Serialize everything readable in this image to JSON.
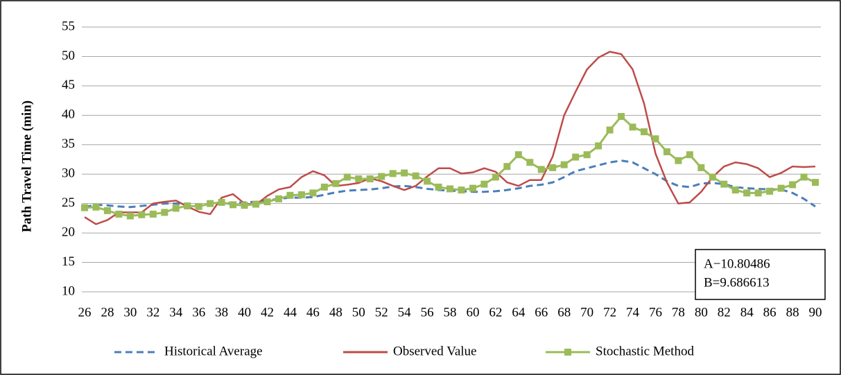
{
  "chart_data": {
    "type": "line",
    "y_label": "Path Travel  Time (min)",
    "x": [
      26,
      27,
      28,
      29,
      30,
      31,
      32,
      33,
      34,
      35,
      36,
      37,
      38,
      39,
      40,
      41,
      42,
      43,
      44,
      45,
      46,
      47,
      48,
      49,
      50,
      51,
      52,
      53,
      54,
      55,
      56,
      57,
      58,
      59,
      60,
      61,
      62,
      63,
      64,
      65,
      66,
      67,
      68,
      69,
      70,
      71,
      72,
      73,
      74,
      75,
      76,
      77,
      78,
      79,
      80,
      81,
      82,
      83,
      84,
      85,
      86,
      87,
      88,
      89,
      90
    ],
    "xlim": [
      26,
      90
    ],
    "xticks": [
      26,
      28,
      30,
      32,
      34,
      36,
      38,
      40,
      42,
      44,
      46,
      48,
      50,
      52,
      54,
      56,
      58,
      60,
      62,
      64,
      66,
      68,
      70,
      72,
      74,
      76,
      78,
      80,
      82,
      84,
      86,
      88,
      90
    ],
    "ylim": [
      10,
      55
    ],
    "yticks": [
      10,
      15,
      20,
      25,
      30,
      35,
      40,
      45,
      50,
      55
    ],
    "grid": true,
    "legend": "bottom",
    "series": [
      {
        "name": "Historical Average",
        "color": "#4a7ebb",
        "style": "dashed",
        "values": [
          24.4,
          24.8,
          24.7,
          24.5,
          24.4,
          24.6,
          24.8,
          25,
          25,
          24.9,
          24.8,
          24.9,
          25,
          25.1,
          25.2,
          25.3,
          25.5,
          25.8,
          26,
          26,
          26.1,
          26.5,
          26.9,
          27.2,
          27.3,
          27.4,
          27.6,
          27.9,
          28,
          27.8,
          27.5,
          27.3,
          27.2,
          27.1,
          27,
          27,
          27.1,
          27.3,
          27.6,
          28,
          28.2,
          28.6,
          29.5,
          30.5,
          31,
          31.5,
          32,
          32.3,
          32,
          31,
          30,
          28.8,
          28,
          27.8,
          28.4,
          28.5,
          28.3,
          27.8,
          27.6,
          27.5,
          27.4,
          27.4,
          26.8,
          25.8,
          24.5
        ]
      },
      {
        "name": "Observed Value",
        "color": "#be4b48",
        "style": "solid",
        "values": [
          22.7,
          21.5,
          22.2,
          23.5,
          23.5,
          23.5,
          25,
          25.3,
          25.5,
          24.5,
          23.6,
          23.2,
          26,
          26.6,
          25,
          24.8,
          26.3,
          27.4,
          27.8,
          29.5,
          30.5,
          29.8,
          28,
          28.2,
          28.5,
          29.3,
          28.8,
          28,
          27.3,
          28,
          29.6,
          31,
          31,
          30.1,
          30.3,
          31,
          30.4,
          28.6,
          28,
          29,
          29,
          33,
          40,
          44,
          47.8,
          49.8,
          50.8,
          50.4,
          47.8,
          42,
          33.5,
          28.6,
          25,
          25.2,
          27,
          29.5,
          31.3,
          32,
          31.7,
          31,
          29.5,
          30.2,
          31.3,
          31.2,
          31.3
        ]
      },
      {
        "name": "Stochastic Method",
        "color": "#9bbb59",
        "style": "marker",
        "values": [
          24.3,
          24.4,
          23.8,
          23.2,
          22.9,
          23.1,
          23.2,
          23.5,
          24.2,
          24.6,
          24.5,
          25,
          25.2,
          24.8,
          24.7,
          24.9,
          25.3,
          25.8,
          26.4,
          26.5,
          26.8,
          27.8,
          28.4,
          29.5,
          29.2,
          29.2,
          29.6,
          30.1,
          30.2,
          29.7,
          28.8,
          27.8,
          27.5,
          27.3,
          27.6,
          28.3,
          29.5,
          31.3,
          33.3,
          32,
          30.8,
          31.1,
          31.6,
          32.9,
          33.3,
          34.8,
          37.5,
          39.8,
          38,
          37.2,
          36,
          33.8,
          32.3,
          33.3,
          31.1,
          29.5,
          28.3,
          27.3,
          26.8,
          26.8,
          27.1,
          27.6,
          28.2,
          29.5,
          28.6
        ]
      }
    ],
    "annotations": [
      "A−10.80486",
      "B=9.686613"
    ]
  }
}
